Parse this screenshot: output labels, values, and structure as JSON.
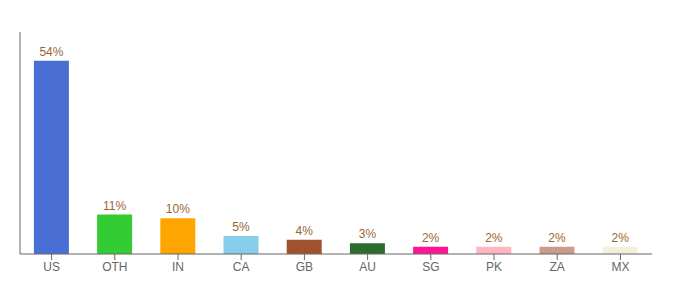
{
  "chart_data": {
    "type": "bar",
    "categories": [
      "US",
      "OTH",
      "IN",
      "CA",
      "GB",
      "AU",
      "SG",
      "PK",
      "ZA",
      "MX"
    ],
    "values": [
      54,
      11,
      10,
      5,
      4,
      3,
      2,
      2,
      2,
      2
    ],
    "value_labels": [
      "54%",
      "11%",
      "10%",
      "5%",
      "4%",
      "3%",
      "2%",
      "2%",
      "2%",
      "2%"
    ],
    "data_labels": true,
    "colors": [
      "#4A6FD4",
      "#33CC33",
      "#FFA500",
      "#87CEEB",
      "#A0522D",
      "#2E6B2E",
      "#FF1493",
      "#FFB6C1",
      "#CD9B8A",
      "#F5F0DC"
    ],
    "ylim": [
      0,
      62
    ],
    "tick_labels": "x",
    "grid": false
  }
}
